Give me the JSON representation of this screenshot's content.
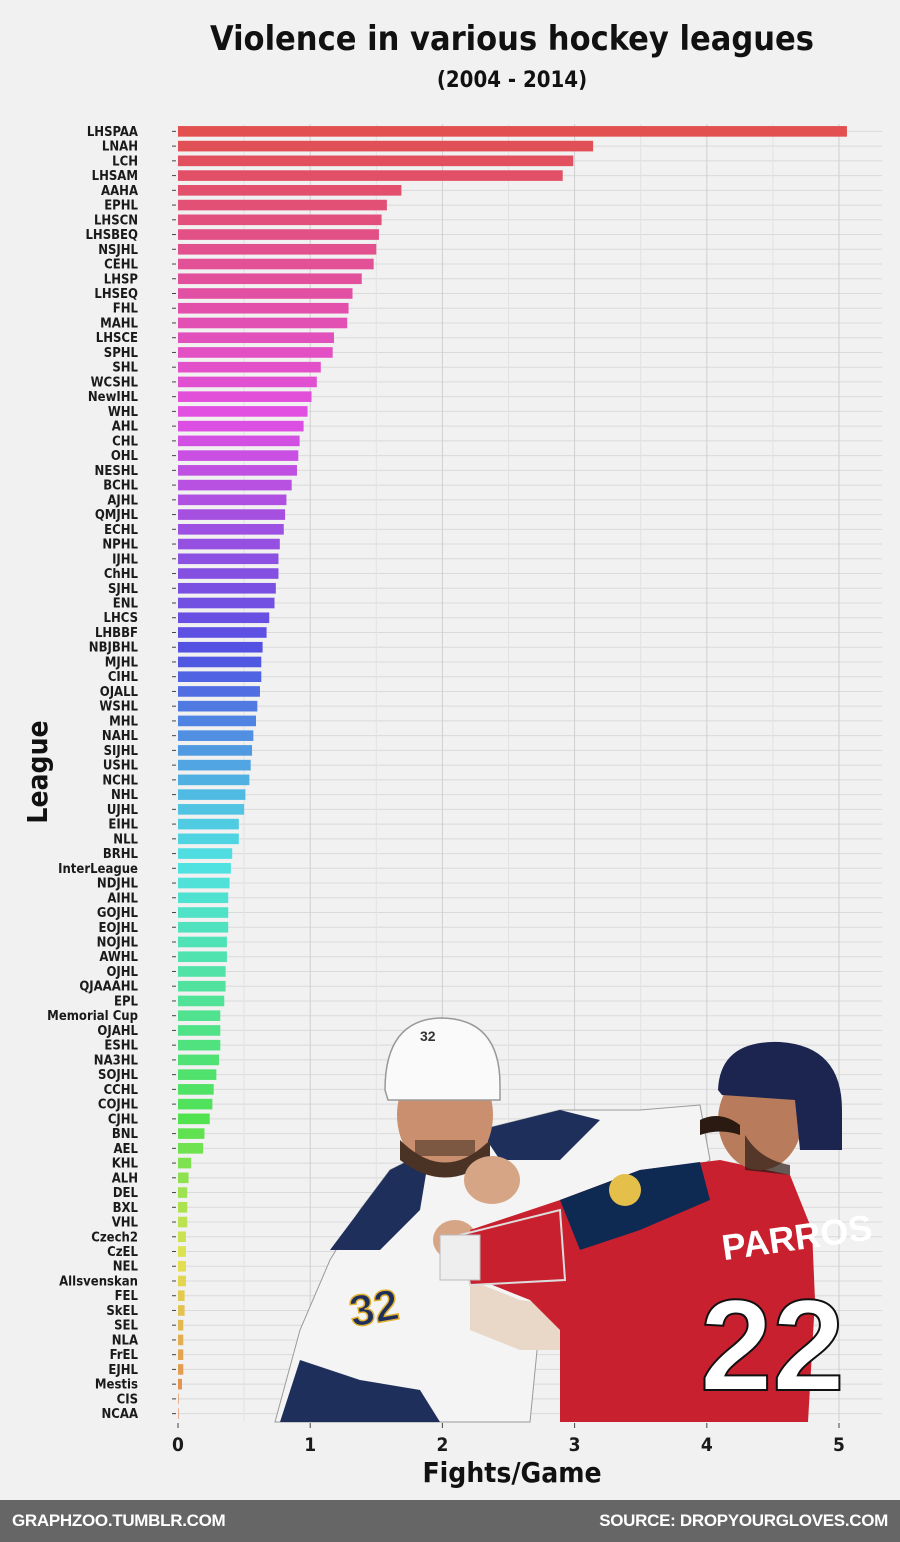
{
  "chart_data": {
    "type": "bar",
    "orientation": "horizontal",
    "title": "Violence in various hockey leagues",
    "subtitle": "(2004 - 2014)",
    "xlabel": "Fights/Game",
    "ylabel": "League",
    "xlim": [
      0,
      5.3
    ],
    "xticks": [
      0,
      1,
      2,
      3,
      4,
      5
    ],
    "grid": true,
    "legend": "none",
    "color_scale": "rainbow (red → magenta → blue → green → olive → orange)",
    "categories": [
      "LHSPAA",
      "LNAH",
      "LCH",
      "LHSAM",
      "AAHA",
      "EPHL",
      "LHSCN",
      "LHSBEQ",
      "NSJHL",
      "CEHL",
      "LHSP",
      "LHSEQ",
      "FHL",
      "MAHL",
      "LHSCE",
      "SPHL",
      "SHL",
      "WCSHL",
      "NewIHL",
      "WHL",
      "AHL",
      "CHL",
      "OHL",
      "NESHL",
      "BCHL",
      "AJHL",
      "QMJHL",
      "ECHL",
      "NPHL",
      "IJHL",
      "ChHL",
      "SJHL",
      "ENL",
      "LHCS",
      "LHBBF",
      "NBJBHL",
      "MJHL",
      "CIHL",
      "OJALL",
      "WSHL",
      "MHL",
      "NAHL",
      "SIJHL",
      "USHL",
      "NCHL",
      "NHL",
      "UJHL",
      "EIHL",
      "NLL",
      "BRHL",
      "InterLeague",
      "NDJHL",
      "AIHL",
      "GOJHL",
      "EOJHL",
      "NOJHL",
      "AWHL",
      "OJHL",
      "QJAAAHL",
      "EPL",
      "Memorial Cup",
      "OJAHL",
      "ESHL",
      "NA3HL",
      "SOJHL",
      "CCHL",
      "COJHL",
      "CJHL",
      "BNL",
      "AEL",
      "KHL",
      "ALH",
      "DEL",
      "BXL",
      "VHL",
      "Czech2",
      "CzEL",
      "NEL",
      "Allsvenskan",
      "FEL",
      "SkEL",
      "SEL",
      "NLA",
      "FrEL",
      "EJHL",
      "Mestis",
      "CIS",
      "NCAA"
    ],
    "values": [
      5.06,
      3.14,
      2.99,
      2.91,
      1.69,
      1.58,
      1.54,
      1.52,
      1.5,
      1.48,
      1.39,
      1.32,
      1.29,
      1.28,
      1.18,
      1.17,
      1.08,
      1.05,
      1.01,
      0.98,
      0.95,
      0.92,
      0.91,
      0.9,
      0.86,
      0.82,
      0.81,
      0.8,
      0.77,
      0.76,
      0.76,
      0.74,
      0.73,
      0.69,
      0.67,
      0.64,
      0.63,
      0.63,
      0.62,
      0.6,
      0.59,
      0.57,
      0.56,
      0.55,
      0.54,
      0.51,
      0.5,
      0.46,
      0.46,
      0.41,
      0.4,
      0.39,
      0.38,
      0.38,
      0.38,
      0.37,
      0.37,
      0.36,
      0.36,
      0.35,
      0.32,
      0.32,
      0.32,
      0.31,
      0.29,
      0.27,
      0.26,
      0.24,
      0.2,
      0.19,
      0.1,
      0.08,
      0.07,
      0.07,
      0.07,
      0.06,
      0.06,
      0.06,
      0.06,
      0.05,
      0.05,
      0.04,
      0.04,
      0.04,
      0.04,
      0.03,
      0.0,
      0.0
    ]
  },
  "photo": {
    "description_icon": "hockey-fight-photo",
    "player_left_number": "32",
    "player_right_number": "22",
    "player_right_name": "PARROS",
    "player_left_helmet_number": "32"
  },
  "footer": {
    "left": "GRAPHZOO.TUMBLR.COM",
    "right": "SOURCE: DROPYOURGLOVES.COM"
  },
  "colors": {
    "background": "#f1f1f1",
    "grid": "#d9d9d9",
    "footer_bg": "#666666",
    "footer_text": "#ffffff"
  }
}
